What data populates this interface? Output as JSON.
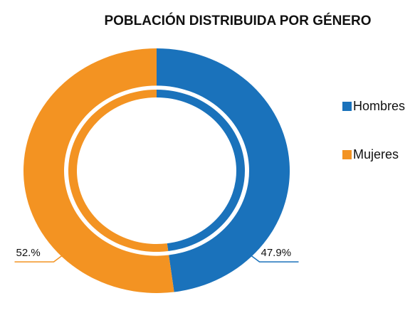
{
  "chart_data": {
    "type": "donut",
    "title": "POBLACIÓN DISTRIBUIDA POR GÉNERO",
    "categories": [
      "Hombres",
      "Mujeres"
    ],
    "values": [
      47.9,
      52.1
    ],
    "value_labels": [
      "47.9%",
      "52.%"
    ],
    "colors": [
      "#1a72bb",
      "#f39322"
    ],
    "legend": "right"
  }
}
